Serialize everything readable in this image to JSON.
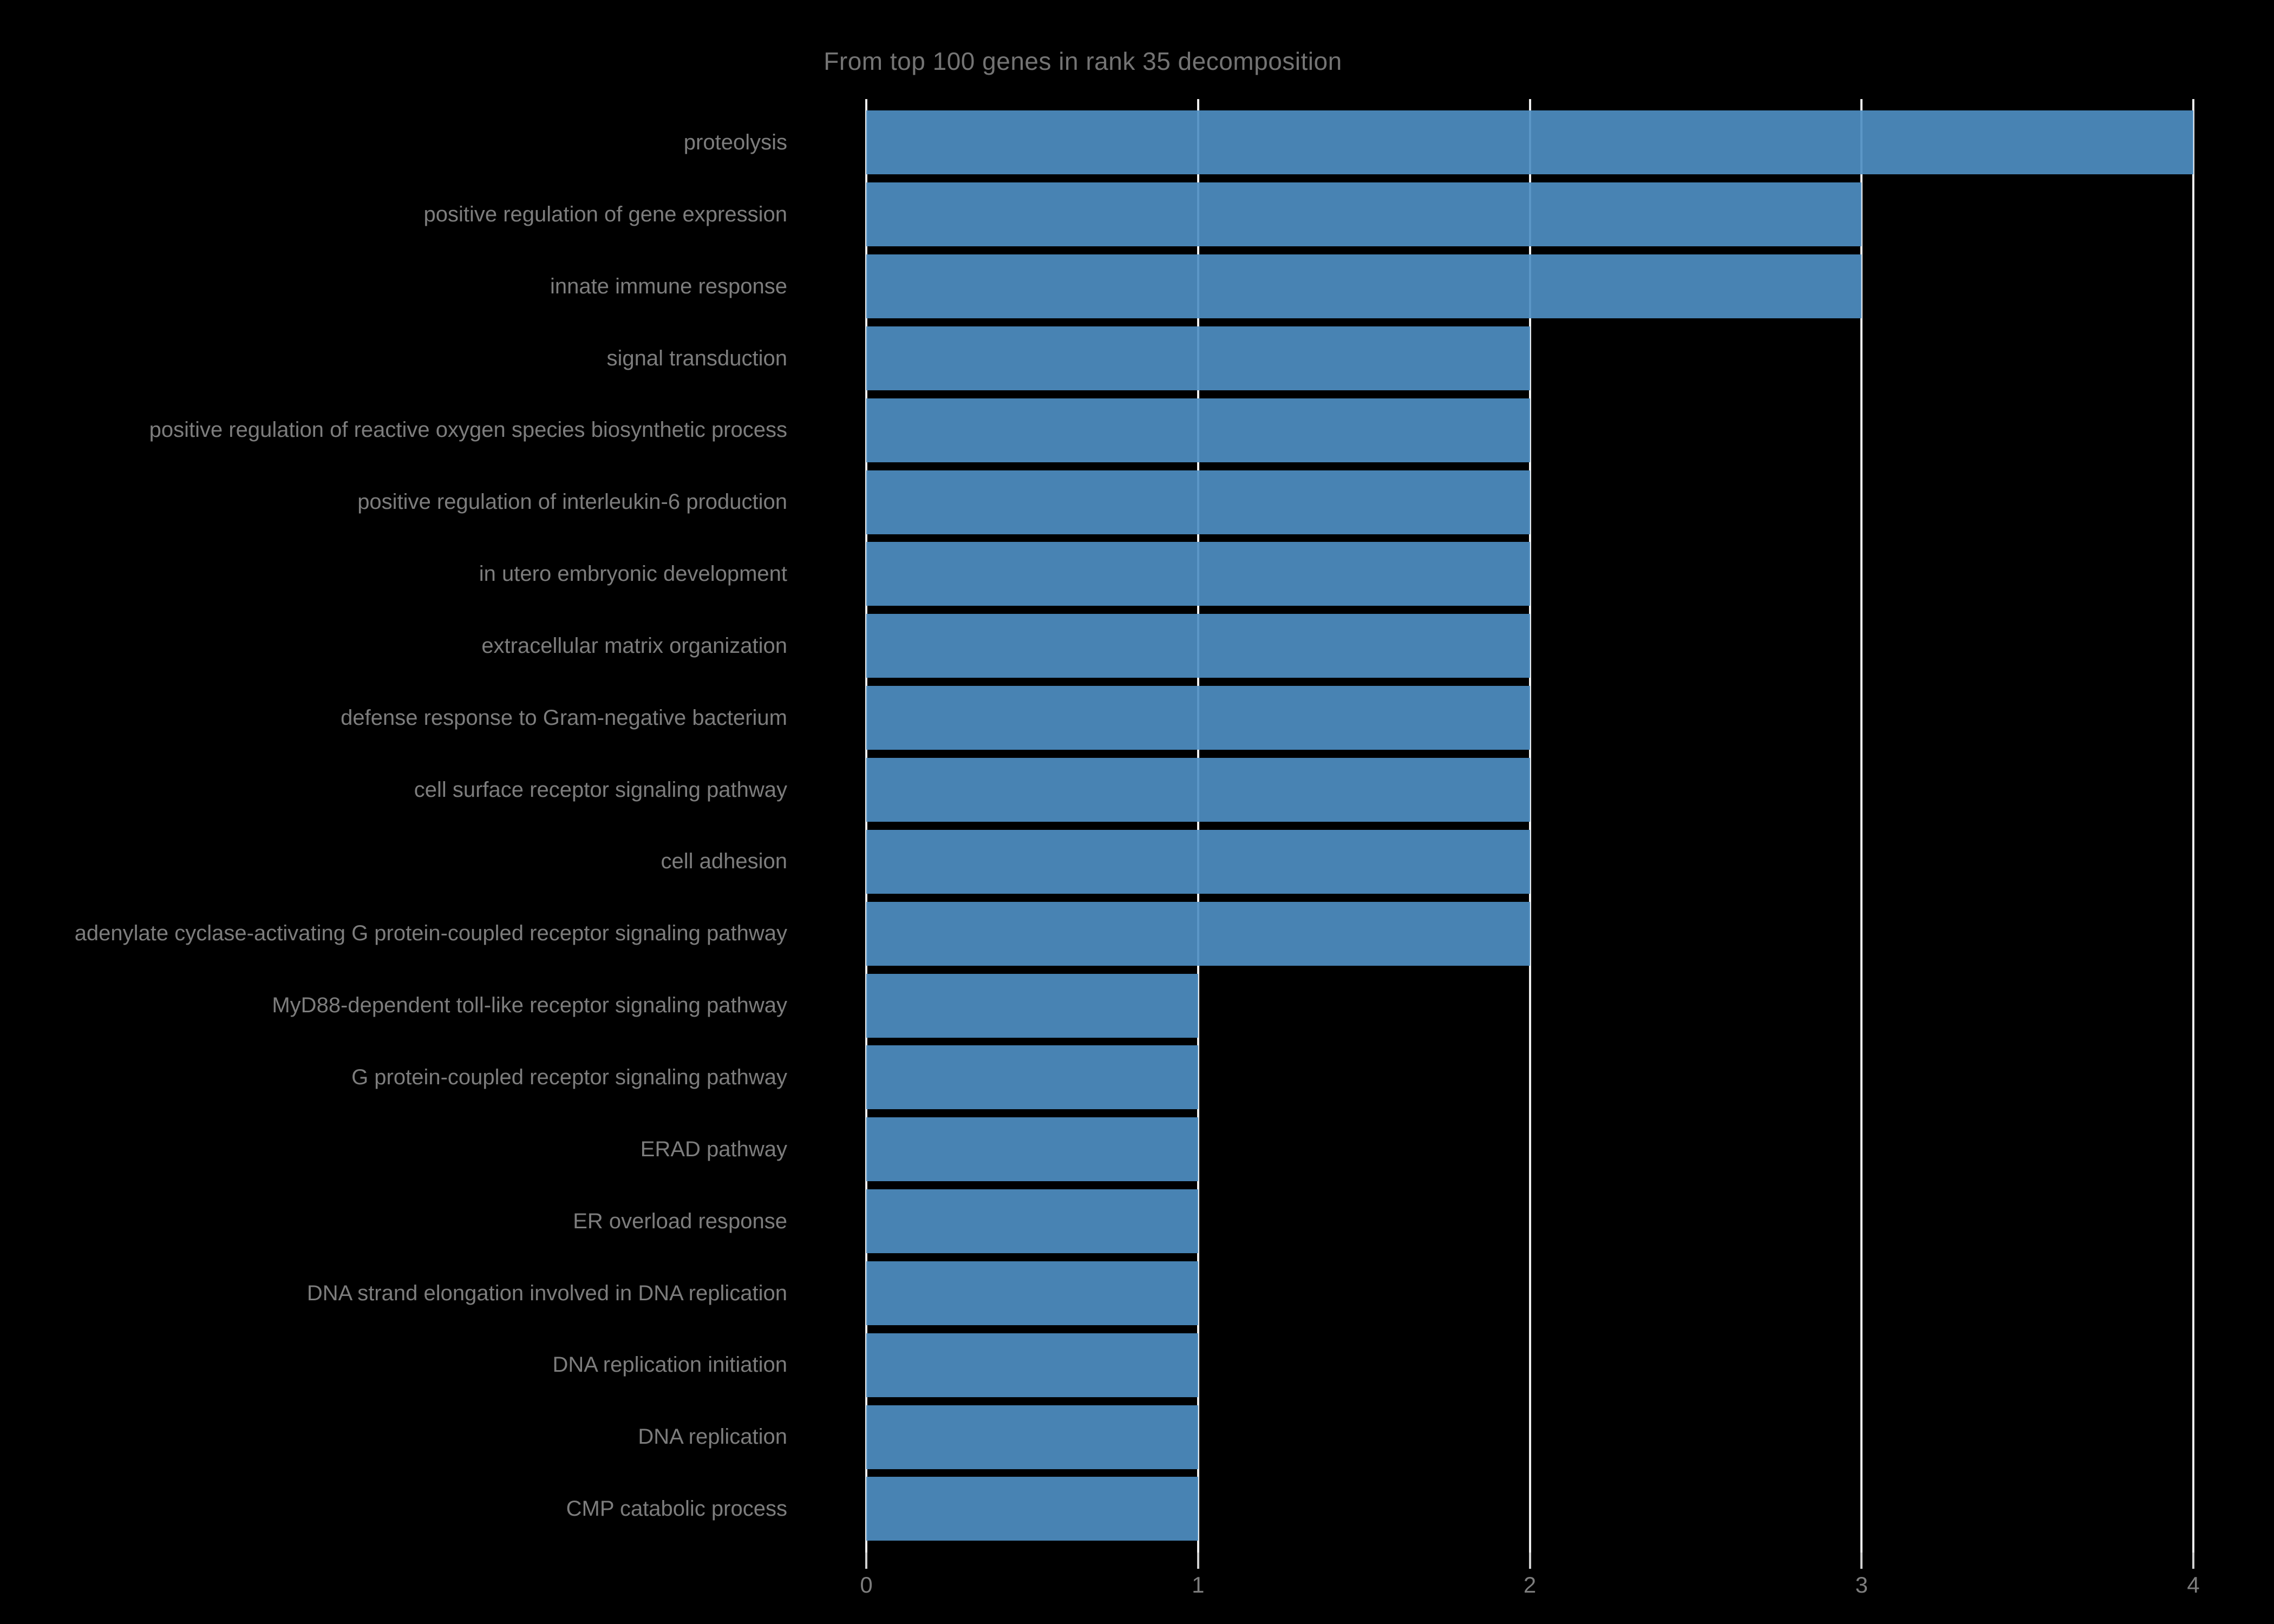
{
  "title": "From top 100 genes in rank 35 decomposition",
  "chart_data": {
    "type": "bar",
    "orientation": "horizontal",
    "title": "From top 100 genes in rank 35 decomposition",
    "xlabel": "",
    "ylabel": "",
    "xlim": [
      0,
      4
    ],
    "xticks": [
      "0",
      "1",
      "2",
      "3",
      "4"
    ],
    "grid": true,
    "legend": false,
    "categories": [
      "proteolysis",
      "positive regulation of gene expression",
      "innate immune response",
      "signal transduction",
      "positive regulation of reactive oxygen species biosynthetic process",
      "positive regulation of interleukin-6 production",
      "in utero embryonic development",
      "extracellular matrix organization",
      "defense response to Gram-negative bacterium",
      "cell surface receptor signaling pathway",
      "cell adhesion",
      "adenylate cyclase-activating G protein-coupled receptor signaling pathway",
      "MyD88-dependent toll-like receptor signaling pathway",
      "G protein-coupled receptor signaling pathway",
      "ERAD pathway",
      "ER overload response",
      "DNA strand elongation involved in DNA replication",
      "DNA replication initiation",
      "DNA replication",
      "CMP catabolic process"
    ],
    "values": [
      4,
      3,
      3,
      2,
      2,
      2,
      2,
      2,
      2,
      2,
      2,
      2,
      1,
      1,
      1,
      1,
      1,
      1,
      1,
      1
    ],
    "colors": {
      "background": "#000000",
      "bar": "#4682b4",
      "gridline": "#ededed",
      "tick_mark": "#cfcfcf",
      "label_text": "#7d7d7d",
      "title_text": "#747474"
    }
  }
}
